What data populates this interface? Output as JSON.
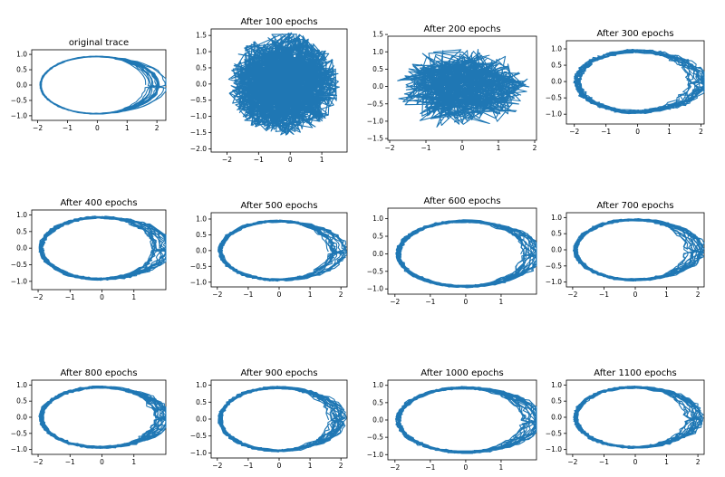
{
  "chart_data": [
    {
      "type": "line",
      "title": "original trace",
      "xticks": [
        -2,
        -1,
        0,
        1,
        2
      ],
      "yticks": [
        1.0,
        0.5,
        0.0,
        -0.5,
        -1.0
      ],
      "xlim": [
        -2.2,
        2.3
      ],
      "ylim": [
        -1.15,
        1.15
      ],
      "pattern": "clean",
      "series": [
        {
          "x": [
            -1.8,
            -1.4,
            -0.8,
            0.0,
            0.8,
            1.5,
            1.8,
            1.6,
            1.0,
            0.2,
            -0.6,
            -1.3,
            -1.8
          ],
          "y": [
            0.4,
            0.75,
            0.9,
            0.97,
            0.9,
            0.6,
            0.0,
            -0.55,
            -0.85,
            -0.9,
            -0.85,
            -0.7,
            -0.3
          ]
        }
      ]
    },
    {
      "type": "line",
      "title": "After 100 epochs",
      "xticks": [
        -2,
        -1,
        0,
        1
      ],
      "yticks": [
        1.5,
        1.0,
        0.5,
        0.0,
        -0.5,
        -1.0,
        -1.5,
        -2.0
      ],
      "xlim": [
        -2.5,
        1.8
      ],
      "ylim": [
        -2.1,
        1.7
      ],
      "pattern": "noise",
      "series": [
        {
          "x": [
            -0.5,
            0.3,
            -0.2,
            0.6,
            -0.9,
            0.1
          ],
          "y": [
            0.2,
            -0.4,
            0.8,
            -0.6,
            0.1,
            1.1
          ]
        }
      ]
    },
    {
      "type": "line",
      "title": "After 200 epochs",
      "xticks": [
        -2,
        -1,
        0,
        1,
        2
      ],
      "yticks": [
        1.5,
        1.0,
        0.5,
        0.0,
        -0.5,
        -1.0,
        -1.5
      ],
      "xlim": [
        -2.05,
        2.05
      ],
      "ylim": [
        -1.55,
        1.45
      ],
      "pattern": "blob",
      "series": [
        {
          "x": [
            -1.5,
            -0.5,
            0.5,
            1.4,
            0.2,
            -1.2
          ],
          "y": [
            0.3,
            0.7,
            -0.5,
            0.4,
            -0.9,
            -0.2
          ]
        }
      ]
    },
    {
      "type": "line",
      "title": "After 300 epochs",
      "xticks": [
        -2,
        -1,
        0,
        1,
        2
      ],
      "yticks": [
        1.0,
        0.5,
        0.0,
        -0.5,
        -1.0
      ],
      "xlim": [
        -2.25,
        2.1
      ],
      "ylim": [
        -1.3,
        1.25
      ],
      "pattern": "loose",
      "series": [
        {
          "x": [
            -1.9,
            -1.0,
            0.0,
            1.0,
            1.6,
            1.2,
            0.0,
            -1.2,
            -1.9
          ],
          "y": [
            0.0,
            0.8,
            1.0,
            0.85,
            0.1,
            -0.8,
            -1.0,
            -0.85,
            0.0
          ]
        }
      ]
    },
    {
      "type": "line",
      "title": "After 400 epochs",
      "xticks": [
        -2,
        -1,
        0,
        1
      ],
      "yticks": [
        1.0,
        0.5,
        0.0,
        -0.5,
        -1.0
      ],
      "xlim": [
        -2.2,
        2.0
      ],
      "ylim": [
        -1.25,
        1.15
      ],
      "pattern": "loop",
      "series": [
        {
          "x": [
            -1.9,
            -1.0,
            0.3,
            1.5,
            1.7,
            1.0,
            -0.2,
            -1.3,
            -1.9
          ],
          "y": [
            0.1,
            0.8,
            1.0,
            0.7,
            -0.2,
            -0.8,
            -0.95,
            -0.75,
            0.1
          ]
        }
      ]
    },
    {
      "type": "line",
      "title": "After 500 epochs",
      "xticks": [
        -2,
        -1,
        0,
        1,
        2
      ],
      "yticks": [
        1.0,
        0.5,
        0.0,
        -0.5,
        -1.0
      ],
      "xlim": [
        -2.2,
        2.2
      ],
      "ylim": [
        -1.15,
        1.2
      ],
      "pattern": "loop",
      "series": [
        {
          "x": [
            -1.9,
            -1.0,
            0.0,
            1.2,
            1.6,
            1.0,
            0.0,
            -1.2,
            -1.9
          ],
          "y": [
            0.1,
            0.75,
            0.95,
            0.7,
            0.0,
            -0.8,
            -0.9,
            -0.8,
            0.1
          ]
        }
      ]
    },
    {
      "type": "line",
      "title": "After 600 epochs",
      "xticks": [
        -2,
        -1,
        0,
        1
      ],
      "yticks": [
        1.0,
        0.5,
        0.0,
        -0.5,
        -1.0
      ],
      "xlim": [
        -2.2,
        2.0
      ],
      "ylim": [
        -1.15,
        1.3
      ],
      "pattern": "loop",
      "series": [
        {
          "x": [
            -1.9,
            -1.0,
            0.0,
            1.3,
            1.6,
            1.0,
            0.0,
            -1.2,
            -1.9
          ],
          "y": [
            0.2,
            0.85,
            0.95,
            0.6,
            -0.3,
            -0.9,
            -0.95,
            -0.75,
            0.2
          ]
        }
      ]
    },
    {
      "type": "line",
      "title": "After 700 epochs",
      "xticks": [
        -2,
        -1,
        0,
        1,
        2
      ],
      "yticks": [
        1.0,
        0.5,
        0.0,
        -0.5,
        -1.0
      ],
      "xlim": [
        -2.2,
        2.2
      ],
      "ylim": [
        -1.15,
        1.15
      ],
      "pattern": "loop",
      "series": [
        {
          "x": [
            -1.9,
            -1.1,
            0.0,
            1.0,
            1.8,
            1.4,
            0.3,
            -0.9,
            -1.9
          ],
          "y": [
            0.2,
            0.85,
            1.0,
            0.9,
            0.2,
            -0.7,
            -0.9,
            -0.8,
            0.2
          ]
        }
      ]
    },
    {
      "type": "line",
      "title": "After 800 epochs",
      "xticks": [
        -2,
        -1,
        0,
        1
      ],
      "yticks": [
        1.0,
        0.5,
        0.0,
        -0.5,
        -1.0
      ],
      "xlim": [
        -2.2,
        2.0
      ],
      "ylim": [
        -1.15,
        1.15
      ],
      "pattern": "loop",
      "series": [
        {
          "x": [
            -1.9,
            -1.2,
            0.0,
            1.0,
            1.7,
            1.2,
            0.0,
            -1.2,
            -1.9
          ],
          "y": [
            0.2,
            0.8,
            1.0,
            0.8,
            0.0,
            -0.8,
            -0.95,
            -0.75,
            0.2
          ]
        }
      ]
    },
    {
      "type": "line",
      "title": "After 900 epochs",
      "xticks": [
        -2,
        -1,
        0,
        1,
        2
      ],
      "yticks": [
        1.0,
        0.5,
        0.0,
        -0.5,
        -1.0
      ],
      "xlim": [
        -2.2,
        2.2
      ],
      "ylim": [
        -1.15,
        1.15
      ],
      "pattern": "loop",
      "series": [
        {
          "x": [
            -1.9,
            -1.0,
            0.2,
            1.4,
            1.8,
            1.0,
            -0.1,
            -1.2,
            -1.9
          ],
          "y": [
            0.0,
            0.8,
            0.95,
            0.8,
            0.0,
            -0.8,
            -0.95,
            -0.7,
            0.0
          ]
        }
      ]
    },
    {
      "type": "line",
      "title": "After 1000 epochs",
      "xticks": [
        -2,
        -1,
        0,
        1
      ],
      "yticks": [
        1.0,
        0.5,
        0.0,
        -0.5,
        -1.0
      ],
      "xlim": [
        -2.2,
        2.0
      ],
      "ylim": [
        -1.15,
        1.15
      ],
      "pattern": "loop",
      "series": [
        {
          "x": [
            -1.9,
            -1.1,
            0.1,
            1.3,
            1.7,
            1.0,
            -0.1,
            -1.2,
            -1.9
          ],
          "y": [
            0.1,
            0.85,
            1.0,
            0.8,
            0.0,
            -0.8,
            -0.9,
            -0.75,
            0.1
          ]
        }
      ]
    },
    {
      "type": "line",
      "title": "After 1100 epochs",
      "xticks": [
        -2,
        -1,
        0,
        1,
        2
      ],
      "yticks": [
        1.0,
        0.5,
        0.0,
        -0.5,
        -1.0
      ],
      "xlim": [
        -2.2,
        2.2
      ],
      "ylim": [
        -1.15,
        1.15
      ],
      "pattern": "loop",
      "series": [
        {
          "x": [
            -1.9,
            -1.2,
            0.0,
            1.0,
            1.8,
            1.5,
            0.2,
            -1.0,
            -1.9
          ],
          "y": [
            0.2,
            0.8,
            1.0,
            0.9,
            0.0,
            -0.8,
            -0.95,
            -0.8,
            0.2
          ]
        }
      ]
    }
  ],
  "style": {
    "line_color": "#1f77b4"
  }
}
